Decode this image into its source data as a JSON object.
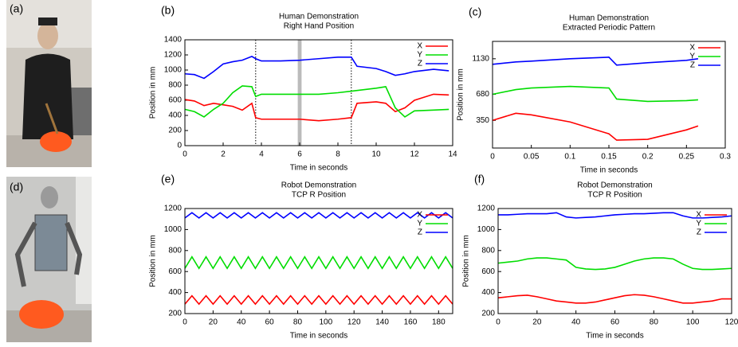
{
  "photos": [
    {
      "label": "(a)"
    },
    {
      "label": "(d)"
    }
  ],
  "chart_data": [
    {
      "type": "line",
      "panel_label": "(b)",
      "title": [
        "Human Demonstration",
        "Right Hand Position"
      ],
      "xlabel": "Time in seconds",
      "ylabel": "Position in mm",
      "xlim": [
        0,
        14
      ],
      "ylim": [
        0,
        1400
      ],
      "xticks": [
        0,
        2,
        4,
        6,
        8,
        10,
        12,
        14
      ],
      "yticks": [
        0,
        200,
        400,
        600,
        800,
        1000,
        1200,
        1400
      ],
      "vlines": [
        3.7,
        8.7
      ],
      "band": [
        5.9,
        6.1
      ],
      "x": [
        0,
        0.5,
        1,
        1.5,
        2,
        2.5,
        3,
        3.5,
        3.7,
        4,
        5,
        6,
        7,
        8,
        8.7,
        9,
        10,
        10.5,
        11,
        11.5,
        12,
        13,
        13.8
      ],
      "series": [
        {
          "name": "X",
          "color": "#ff0000",
          "values": [
            610,
            590,
            530,
            560,
            540,
            520,
            470,
            560,
            370,
            350,
            350,
            350,
            330,
            350,
            370,
            560,
            580,
            560,
            450,
            500,
            600,
            680,
            670
          ]
        },
        {
          "name": "Y",
          "color": "#00dd00",
          "values": [
            480,
            450,
            380,
            480,
            560,
            700,
            790,
            780,
            650,
            680,
            680,
            680,
            680,
            700,
            720,
            730,
            760,
            780,
            500,
            380,
            460,
            470,
            480
          ]
        },
        {
          "name": "Z",
          "color": "#0000ff",
          "values": [
            950,
            940,
            890,
            980,
            1080,
            1110,
            1130,
            1180,
            1150,
            1120,
            1120,
            1130,
            1150,
            1170,
            1170,
            1050,
            1020,
            980,
            930,
            950,
            980,
            1010,
            990
          ]
        }
      ]
    },
    {
      "type": "line",
      "panel_label": "(c)",
      "title": [
        "Human Demonstration",
        "Extracted Periodic Pattern"
      ],
      "xlabel": "Time in seconds",
      "ylabel": "Position in mm",
      "xlim": [
        0,
        0.3
      ],
      "ylim": [
        0,
        1350
      ],
      "xticks": [
        0,
        0.05,
        0.1,
        0.15,
        0.2,
        0.25,
        0.3
      ],
      "yticks": [
        350,
        680,
        1130
      ],
      "x": [
        0,
        0.03,
        0.05,
        0.1,
        0.15,
        0.16,
        0.2,
        0.25,
        0.265
      ],
      "series": [
        {
          "name": "X",
          "color": "#ff0000",
          "values": [
            350,
            440,
            420,
            330,
            180,
            100,
            110,
            230,
            280
          ]
        },
        {
          "name": "Y",
          "color": "#00dd00",
          "values": [
            680,
            740,
            760,
            780,
            760,
            620,
            590,
            600,
            610
          ]
        },
        {
          "name": "Z",
          "color": "#0000ff",
          "values": [
            1060,
            1090,
            1100,
            1130,
            1150,
            1050,
            1080,
            1110,
            1130
          ]
        }
      ]
    },
    {
      "type": "line",
      "panel_label": "(e)",
      "title": [
        "Robot Demonstration",
        "TCP R Position"
      ],
      "xlabel": "Time in seconds",
      "ylabel": "Position in mm",
      "xlim": [
        0,
        190
      ],
      "ylim": [
        200,
        1200
      ],
      "xticks": [
        0,
        20,
        40,
        60,
        80,
        100,
        120,
        140,
        160,
        180
      ],
      "yticks": [
        200,
        400,
        600,
        800,
        1000,
        1200
      ],
      "x": [
        0,
        5,
        10,
        15,
        20,
        25,
        30,
        35,
        40,
        45,
        50,
        55,
        60,
        65,
        70,
        75,
        80,
        85,
        90,
        95,
        100,
        105,
        110,
        115,
        120,
        125,
        130,
        135,
        140,
        145,
        150,
        155,
        160,
        165,
        170,
        175,
        180,
        185,
        190
      ],
      "series": [
        {
          "name": "X",
          "color": "#ff0000",
          "values": [
            290,
            370,
            290,
            370,
            290,
            370,
            290,
            370,
            290,
            370,
            290,
            370,
            290,
            370,
            290,
            370,
            290,
            370,
            290,
            370,
            290,
            370,
            290,
            370,
            290,
            370,
            290,
            370,
            290,
            370,
            290,
            370,
            290,
            370,
            290,
            370,
            290,
            370,
            290
          ]
        },
        {
          "name": "Y",
          "color": "#00dd00",
          "values": [
            630,
            740,
            630,
            740,
            630,
            740,
            630,
            740,
            630,
            740,
            630,
            740,
            630,
            740,
            630,
            740,
            630,
            740,
            630,
            740,
            630,
            740,
            630,
            740,
            630,
            740,
            630,
            740,
            630,
            740,
            630,
            740,
            630,
            740,
            630,
            740,
            630,
            740,
            630
          ]
        },
        {
          "name": "Z",
          "color": "#0000ff",
          "values": [
            1110,
            1160,
            1110,
            1160,
            1110,
            1160,
            1110,
            1160,
            1110,
            1160,
            1110,
            1160,
            1110,
            1160,
            1110,
            1160,
            1110,
            1160,
            1110,
            1160,
            1110,
            1160,
            1110,
            1160,
            1110,
            1160,
            1110,
            1160,
            1110,
            1160,
            1110,
            1160,
            1110,
            1160,
            1110,
            1160,
            1110,
            1160,
            1110
          ]
        }
      ]
    },
    {
      "type": "line",
      "panel_label": "(f)",
      "title": [
        "Robot Demonstration",
        "TCP R Position"
      ],
      "xlabel": "Time in seconds",
      "ylabel": "Position in mm",
      "xlim": [
        0,
        120
      ],
      "ylim": [
        200,
        1200
      ],
      "xticks": [
        0,
        20,
        40,
        60,
        80,
        100,
        120
      ],
      "yticks": [
        200,
        400,
        600,
        800,
        1000,
        1200
      ],
      "x": [
        0,
        5,
        10,
        15,
        20,
        25,
        30,
        35,
        40,
        45,
        50,
        55,
        60,
        65,
        70,
        75,
        80,
        85,
        90,
        95,
        100,
        105,
        110,
        115,
        120
      ],
      "series": [
        {
          "name": "X",
          "color": "#ff0000",
          "values": [
            350,
            360,
            370,
            375,
            360,
            340,
            320,
            310,
            300,
            300,
            310,
            330,
            350,
            370,
            380,
            375,
            360,
            340,
            320,
            300,
            300,
            310,
            320,
            340,
            340
          ]
        },
        {
          "name": "Y",
          "color": "#00dd00",
          "values": [
            680,
            690,
            700,
            720,
            730,
            730,
            720,
            710,
            640,
            625,
            620,
            625,
            640,
            670,
            700,
            720,
            730,
            730,
            720,
            670,
            630,
            620,
            620,
            625,
            630
          ]
        },
        {
          "name": "Z",
          "color": "#0000ff",
          "values": [
            1140,
            1140,
            1145,
            1150,
            1150,
            1150,
            1160,
            1120,
            1110,
            1115,
            1120,
            1130,
            1140,
            1145,
            1150,
            1150,
            1155,
            1160,
            1160,
            1130,
            1110,
            1110,
            1115,
            1120,
            1130
          ]
        }
      ]
    }
  ]
}
